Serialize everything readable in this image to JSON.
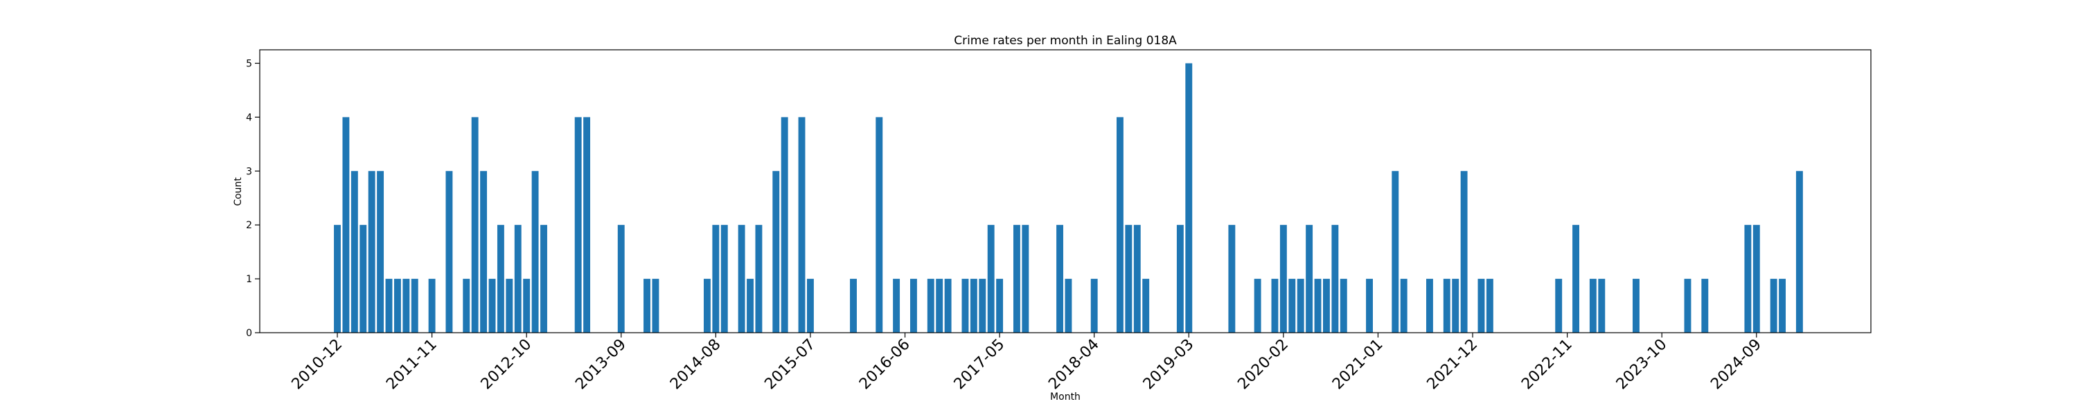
{
  "chart_data": {
    "type": "bar",
    "title": "Crime rates per month in Ealing 018A",
    "xlabel": "Month",
    "ylabel": "Count",
    "ylim": [
      0,
      5.25
    ],
    "yticks": [
      0,
      1,
      2,
      3,
      4,
      5
    ],
    "xticks": [
      "2010-12",
      "2011-11",
      "2012-10",
      "2013-09",
      "2014-08",
      "2015-07",
      "2016-06",
      "2017-05",
      "2018-04",
      "2019-03",
      "2020-02",
      "2021-01",
      "2021-12",
      "2022-11",
      "2023-10",
      "2024-09"
    ],
    "grid": false,
    "color": "#1f77b4",
    "x": [
      "2010-12",
      "2011-01",
      "2011-02",
      "2011-03",
      "2011-04",
      "2011-05",
      "2011-06",
      "2011-07",
      "2011-08",
      "2011-09",
      "2011-11",
      "2012-01",
      "2012-03",
      "2012-04",
      "2012-05",
      "2012-06",
      "2012-07",
      "2012-08",
      "2012-09",
      "2012-10",
      "2012-11",
      "2012-12",
      "2013-04",
      "2013-05",
      "2013-09",
      "2013-12",
      "2014-01",
      "2014-07",
      "2014-08",
      "2014-09",
      "2014-11",
      "2014-12",
      "2015-01",
      "2015-03",
      "2015-04",
      "2015-06",
      "2015-07",
      "2015-12",
      "2016-03",
      "2016-05",
      "2016-07",
      "2016-09",
      "2016-10",
      "2016-11",
      "2017-01",
      "2017-02",
      "2017-03",
      "2017-04",
      "2017-05",
      "2017-07",
      "2017-08",
      "2017-12",
      "2018-01",
      "2018-04",
      "2018-07",
      "2018-08",
      "2018-09",
      "2018-10",
      "2019-02",
      "2019-03",
      "2019-08",
      "2019-11",
      "2020-01",
      "2020-02",
      "2020-03",
      "2020-04",
      "2020-05",
      "2020-06",
      "2020-07",
      "2020-08",
      "2020-09",
      "2020-12",
      "2021-03",
      "2021-04",
      "2021-07",
      "2021-09",
      "2021-10",
      "2021-11",
      "2022-01",
      "2022-02",
      "2022-10",
      "2022-12",
      "2023-02",
      "2023-03",
      "2023-07",
      "2024-01",
      "2024-03",
      "2024-08",
      "2024-09",
      "2024-11",
      "2024-12",
      "2025-02"
    ],
    "values": [
      2,
      4,
      3,
      2,
      3,
      3,
      1,
      1,
      1,
      1,
      1,
      3,
      1,
      4,
      3,
      1,
      2,
      1,
      2,
      1,
      3,
      2,
      4,
      4,
      2,
      1,
      1,
      1,
      2,
      2,
      2,
      1,
      2,
      3,
      4,
      4,
      1,
      1,
      4,
      1,
      1,
      1,
      1,
      1,
      1,
      1,
      1,
      2,
      1,
      2,
      2,
      2,
      1,
      1,
      4,
      2,
      2,
      1,
      2,
      5,
      2,
      1,
      1,
      2,
      1,
      1,
      2,
      1,
      1,
      2,
      1,
      1,
      3,
      1,
      1,
      1,
      1,
      3,
      1,
      1,
      1,
      2,
      1,
      1,
      1,
      1,
      1,
      2,
      2,
      1,
      1,
      3
    ]
  }
}
